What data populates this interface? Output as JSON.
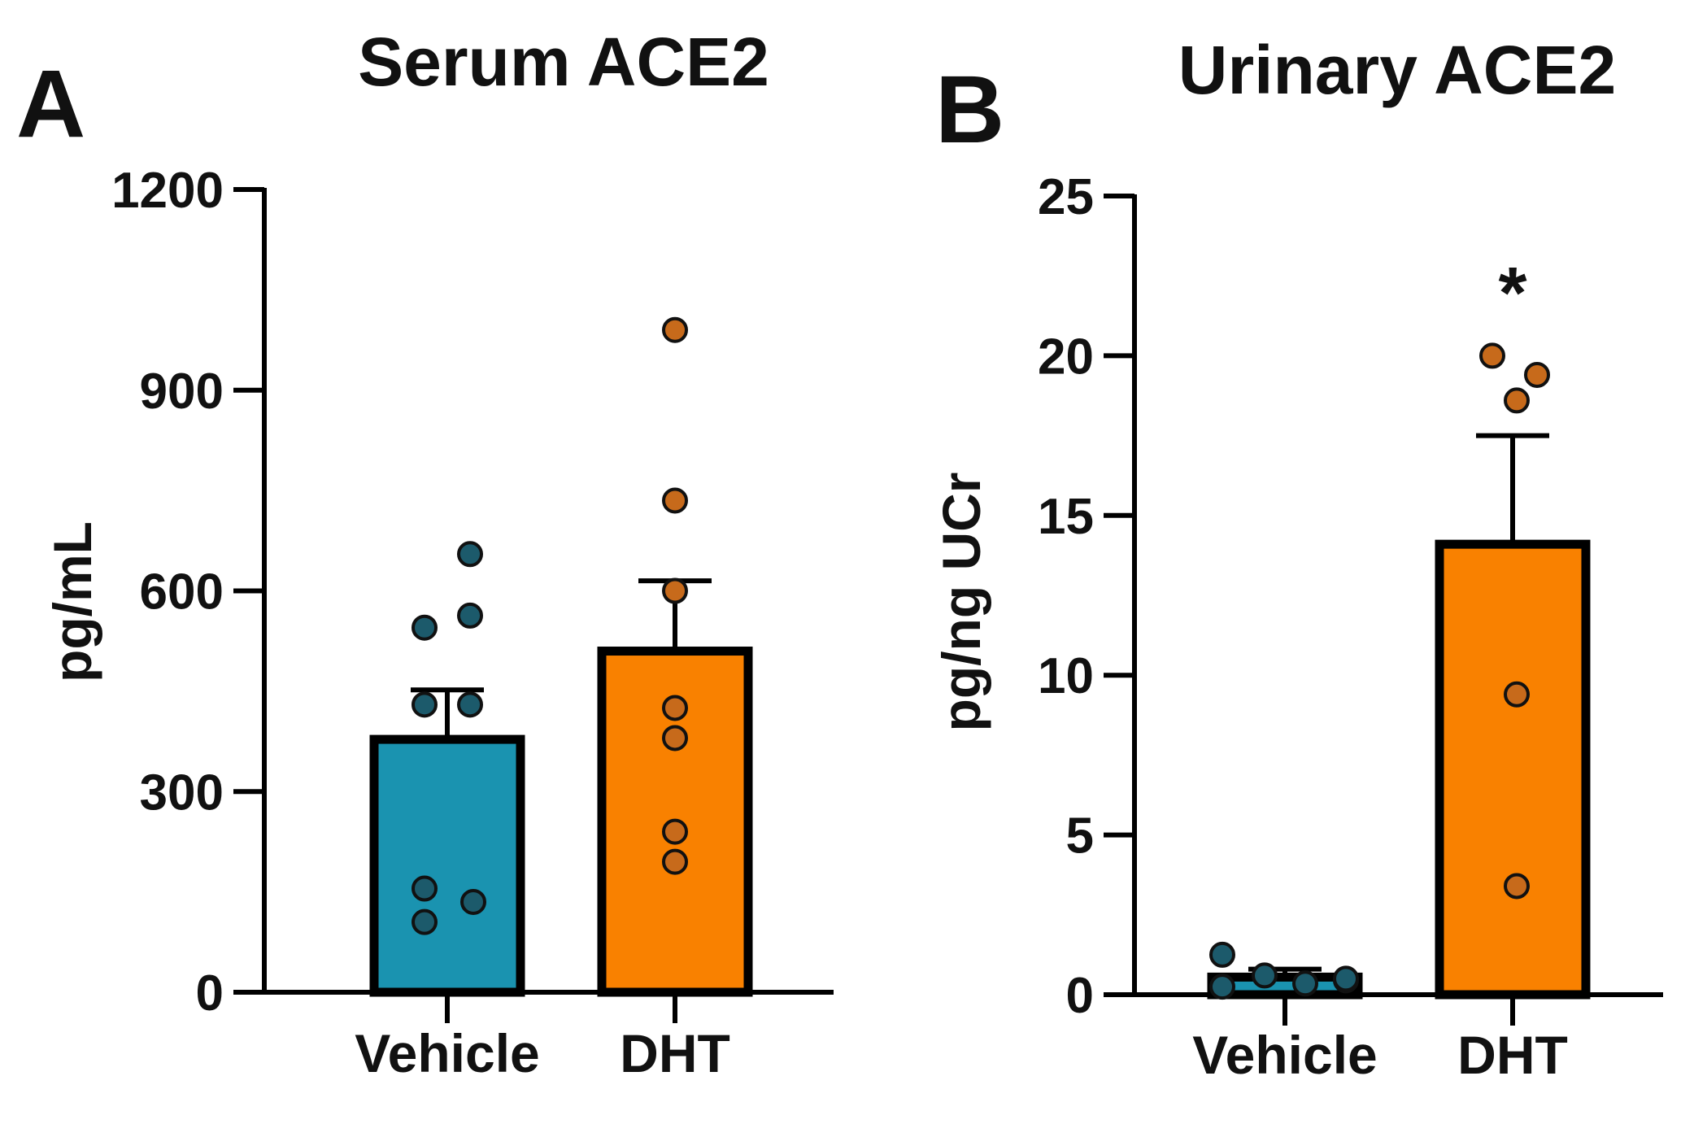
{
  "chart_data": [
    {
      "type": "bar",
      "panel": "A",
      "title": "Serum ACE2",
      "xlabel": "",
      "ylabel": "pg/mL",
      "ylim": [
        0,
        1200
      ],
      "yticks": [
        0,
        300,
        600,
        900,
        1200
      ],
      "categories": [
        "Vehicle",
        "DHT"
      ],
      "values": [
        378,
        510
      ],
      "errors": [
        74,
        105
      ],
      "colors": [
        "#1a93b0",
        "#f98100"
      ],
      "point_colors": [
        "#1c5a6b",
        "#c76a1b"
      ],
      "points": [
        [
          655,
          545,
          563,
          430,
          430,
          155,
          135,
          105
        ],
        [
          990,
          735,
          600,
          425,
          380,
          240,
          195
        ]
      ],
      "significance": [
        "",
        ""
      ],
      "grid": false,
      "legend": "none"
    },
    {
      "type": "bar",
      "panel": "B",
      "title": "Urinary ACE2",
      "xlabel": "",
      "ylabel": "pg/ng UCr",
      "ylim": [
        0,
        25
      ],
      "yticks": [
        0,
        5,
        10,
        15,
        20,
        25
      ],
      "categories": [
        "Vehicle",
        "DHT"
      ],
      "values": [
        0.55,
        14.1
      ],
      "errors": [
        0.25,
        3.4
      ],
      "colors": [
        "#1a93b0",
        "#f98100"
      ],
      "point_colors": [
        "#1c5a6b",
        "#c76a1b"
      ],
      "points": [
        [
          1.25,
          0.25,
          0.6,
          0.45,
          0.35,
          0.5
        ],
        [
          20.0,
          19.4,
          18.6,
          9.4,
          3.4
        ]
      ],
      "significance": [
        "",
        "*"
      ],
      "grid": false,
      "legend": "none"
    }
  ]
}
